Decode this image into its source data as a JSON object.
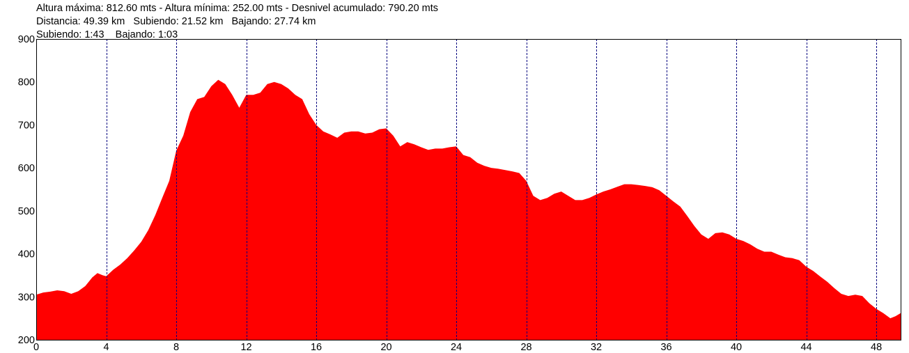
{
  "header": {
    "line1": "Altura máxima: 812.60 mts - Altura mínima: 252.00 mts - Desnivel acumulado: 790.20 mts",
    "line2": "Distancia: 49.39 km   Subiendo: 21.52 km   Bajando: 27.74 km",
    "line3": "Subiendo: 1:43    Bajando: 1:03"
  },
  "colors": {
    "fill": "#ff0000",
    "grid": "#000080",
    "frame": "#000000"
  },
  "chart_data": {
    "type": "area",
    "title": "",
    "xlabel": "",
    "ylabel": "",
    "xlim": [
      0,
      49.39
    ],
    "ylim": [
      200,
      900
    ],
    "xticks": [
      0,
      4,
      8,
      12,
      16,
      20,
      24,
      28,
      32,
      36,
      40,
      44,
      48
    ],
    "yticks": [
      200,
      300,
      400,
      500,
      600,
      700,
      800,
      900
    ],
    "grid": "vertical-dashed",
    "series": [
      {
        "x": [
          0,
          0.4,
          0.8,
          1.2,
          1.6,
          2.0,
          2.4,
          2.8,
          3.2,
          3.5,
          3.8,
          4.0,
          4.4,
          4.8,
          5.2,
          5.6,
          6.0,
          6.4,
          6.8,
          7.2,
          7.6,
          8.0,
          8.4,
          8.8,
          9.2,
          9.6,
          10.0,
          10.4,
          10.8,
          11.2,
          11.6,
          12.0,
          12.4,
          12.8,
          13.2,
          13.6,
          14.0,
          14.4,
          14.8,
          15.2,
          15.6,
          16.0,
          16.4,
          16.8,
          17.2,
          17.6,
          18.0,
          18.4,
          18.8,
          19.2,
          19.6,
          20.0,
          20.4,
          20.8,
          21.2,
          21.6,
          22.0,
          22.4,
          22.8,
          23.2,
          23.6,
          24.0,
          24.4,
          24.8,
          25.2,
          25.6,
          26.0,
          26.4,
          26.8,
          27.2,
          27.6,
          28.0,
          28.4,
          28.8,
          29.2,
          29.6,
          30.0,
          30.4,
          30.8,
          31.2,
          31.6,
          32.0,
          32.4,
          32.8,
          33.2,
          33.6,
          34.0,
          34.4,
          34.8,
          35.2,
          35.6,
          36.0,
          36.4,
          36.8,
          37.2,
          37.6,
          38.0,
          38.4,
          38.8,
          39.2,
          39.6,
          40.0,
          40.4,
          40.8,
          41.2,
          41.6,
          42.0,
          42.4,
          42.8,
          43.2,
          43.6,
          44.0,
          44.4,
          44.8,
          45.2,
          45.6,
          46.0,
          46.4,
          46.8,
          47.2,
          47.6,
          48.0,
          48.4,
          48.8,
          49.1,
          49.39
        ],
        "y": [
          305,
          310,
          312,
          315,
          313,
          307,
          313,
          325,
          345,
          355,
          350,
          348,
          363,
          375,
          390,
          408,
          428,
          455,
          490,
          530,
          570,
          640,
          675,
          730,
          760,
          765,
          790,
          805,
          795,
          770,
          740,
          770,
          770,
          775,
          795,
          800,
          795,
          785,
          770,
          760,
          725,
          700,
          685,
          678,
          670,
          682,
          685,
          685,
          680,
          682,
          690,
          692,
          675,
          650,
          660,
          655,
          648,
          642,
          645,
          645,
          648,
          650,
          630,
          625,
          612,
          605,
          600,
          598,
          595,
          592,
          588,
          570,
          535,
          525,
          530,
          540,
          545,
          535,
          525,
          525,
          530,
          538,
          545,
          550,
          556,
          562,
          562,
          560,
          558,
          555,
          548,
          535,
          522,
          510,
          488,
          465,
          445,
          435,
          448,
          450,
          445,
          435,
          430,
          422,
          412,
          405,
          405,
          398,
          392,
          390,
          385,
          370,
          360,
          347,
          335,
          320,
          307,
          302,
          305,
          302,
          285,
          272,
          262,
          250,
          255,
          262
        ]
      }
    ]
  }
}
